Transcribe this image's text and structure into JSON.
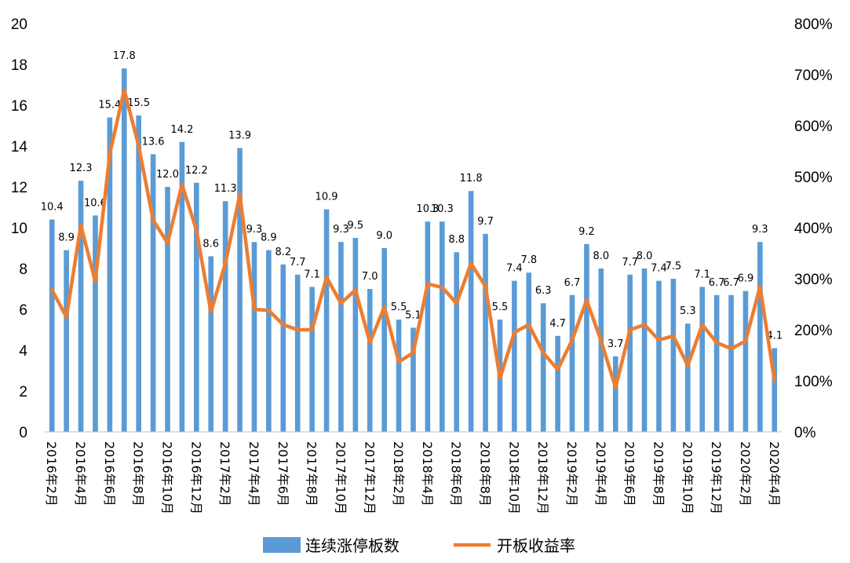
{
  "chart_data": {
    "type": "bar+line",
    "categories": [
      "2016年2月",
      "2016年3月",
      "2016年4月",
      "2016年5月",
      "2016年6月",
      "2016年7月",
      "2016年8月",
      "2016年9月",
      "2016年10月",
      "2016年11月",
      "2016年12月",
      "2017年1月",
      "2017年2月",
      "2017年3月",
      "2017年4月",
      "2017年5月",
      "2017年6月",
      "2017年7月",
      "2017年8月",
      "2017年9月",
      "2017年10月",
      "2017年11月",
      "2017年12月",
      "2018年1月",
      "2018年2月",
      "2018年3月",
      "2018年4月",
      "2018年5月",
      "2018年6月",
      "2018年7月",
      "2018年8月",
      "2018年9月",
      "2018年10月",
      "2018年11月",
      "2018年12月",
      "2019年1月",
      "2019年2月",
      "2019年3月",
      "2019年4月",
      "2019年5月",
      "2019年6月",
      "2019年7月",
      "2019年8月",
      "2019年9月",
      "2019年10月",
      "2019年11月",
      "2019年12月",
      "2020年1月",
      "2020年2月",
      "2020年3月",
      "2020年4月"
    ],
    "x_tick_labels": [
      "2016年2月",
      "2016年4月",
      "2016年6月",
      "2016年8月",
      "2016年10月",
      "2016年12月",
      "2017年2月",
      "2017年4月",
      "2017年6月",
      "2017年8月",
      "2017年10月",
      "2017年12月",
      "2018年2月",
      "2018年4月",
      "2018年6月",
      "2018年8月",
      "2018年10月",
      "2018年12月",
      "2019年2月",
      "2019年4月",
      "2019年6月",
      "2019年8月",
      "2019年10月",
      "2019年12月",
      "2020年2月",
      "2020年4月"
    ],
    "series": [
      {
        "name": "连续涨停板数",
        "type": "bar",
        "axis": "left",
        "color": "#5b9bd5",
        "values": [
          10.4,
          8.9,
          12.3,
          10.6,
          15.4,
          17.8,
          15.5,
          13.6,
          12.0,
          14.2,
          12.2,
          8.6,
          11.3,
          13.9,
          9.3,
          8.9,
          8.2,
          7.7,
          7.1,
          10.9,
          9.3,
          9.5,
          7.0,
          9.0,
          5.5,
          5.1,
          10.3,
          10.3,
          8.8,
          11.8,
          9.7,
          5.5,
          7.4,
          7.8,
          6.3,
          4.7,
          6.7,
          9.2,
          8.0,
          3.7,
          7.7,
          8.0,
          7.4,
          7.5,
          5.3,
          7.1,
          6.7,
          6.7,
          6.9,
          9.3,
          4.1
        ],
        "labels": [
          "10.4",
          "8.9",
          "12.3",
          "10.6",
          "15.4",
          "17.8",
          "15.5",
          "13.6",
          "12.0",
          "14.2",
          "12.2",
          "8.6",
          "11.3",
          "13.9",
          "9.3",
          "8.9",
          "8.2",
          "7.7",
          "7.1",
          "10.9",
          "9.3",
          "9.5",
          "7.0",
          "9.0",
          "5.5",
          "5.1",
          "10.3",
          "10.3",
          "8.8",
          "11.8",
          "9.7",
          "5.5",
          "7.4",
          "7.8",
          "6.3",
          "4.7",
          "6.7",
          "9.2",
          "8.0",
          "3.7",
          "7.7",
          "8.0",
          "7.4",
          "7.5",
          "5.3",
          "7.1",
          "6.7",
          "6.7",
          "6.9",
          "9.3",
          "4.1"
        ]
      },
      {
        "name": "开板收益率",
        "type": "line",
        "axis": "right",
        "unit": "%",
        "color": "#ed7d31",
        "values": [
          278,
          225,
          405,
          295,
          545,
          670,
          560,
          415,
          370,
          485,
          395,
          235,
          330,
          465,
          240,
          238,
          210,
          200,
          200,
          303,
          252,
          278,
          175,
          245,
          137,
          155,
          290,
          283,
          252,
          330,
          285,
          105,
          195,
          210,
          155,
          122,
          180,
          258,
          178,
          87,
          200,
          210,
          180,
          188,
          130,
          210,
          175,
          163,
          178,
          285,
          100
        ]
      }
    ],
    "y_left": {
      "min": 0,
      "max": 20,
      "step": 2,
      "ticks": [
        "0",
        "2",
        "4",
        "6",
        "8",
        "10",
        "12",
        "14",
        "16",
        "18",
        "20"
      ]
    },
    "y_right": {
      "min": 0,
      "max": 800,
      "step": 100,
      "ticks": [
        "0%",
        "100%",
        "200%",
        "300%",
        "400%",
        "500%",
        "600%",
        "700%",
        "800%"
      ]
    },
    "legend": {
      "placement": "bottom",
      "items": [
        {
          "label": "连续涨停板数",
          "color": "#5b9bd5",
          "shape": "box"
        },
        {
          "label": "开板收益率",
          "color": "#ed7d31",
          "shape": "line"
        }
      ]
    },
    "grid": false
  }
}
